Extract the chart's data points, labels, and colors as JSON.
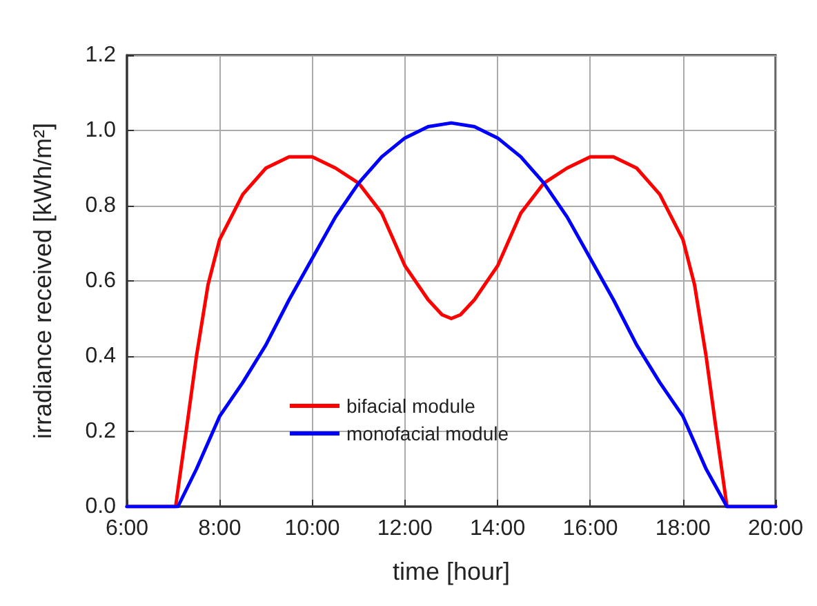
{
  "chart_data": {
    "type": "line",
    "xlabel": "time [hour]",
    "ylabel": "irradiance received [kWh/m²]",
    "xlim": [
      6,
      20
    ],
    "ylim": [
      0,
      1.2
    ],
    "xticks": [
      {
        "value": 6,
        "label": "6:00"
      },
      {
        "value": 8,
        "label": "8:00"
      },
      {
        "value": 10,
        "label": "10:00"
      },
      {
        "value": 12,
        "label": "12:00"
      },
      {
        "value": 14,
        "label": "14:00"
      },
      {
        "value": 16,
        "label": "16:00"
      },
      {
        "value": 18,
        "label": "18:00"
      },
      {
        "value": 20,
        "label": "20:00"
      }
    ],
    "yticks": [
      {
        "value": 0,
        "label": "0.0"
      },
      {
        "value": 0.2,
        "label": "0.2"
      },
      {
        "value": 0.4,
        "label": "0.4"
      },
      {
        "value": 0.6,
        "label": "0.6"
      },
      {
        "value": 0.8,
        "label": "0.8"
      },
      {
        "value": 1.0,
        "label": "1.0"
      },
      {
        "value": 1.2,
        "label": "1.2"
      }
    ],
    "grid": true,
    "legend": "bottom",
    "marker": "none",
    "line_style": "solid",
    "series": [
      {
        "name": "bifacial module",
        "color": "#ff0000",
        "x": [
          6,
          7.05,
          7.3,
          7.5,
          7.75,
          8,
          8.5,
          9,
          9.5,
          9.8,
          10,
          10.5,
          11,
          11.5,
          12,
          12.5,
          12.8,
          13,
          13.2,
          13.5,
          14,
          14.5,
          15,
          15.5,
          16,
          16.2,
          16.5,
          17,
          17.5,
          18,
          18.25,
          18.5,
          18.7,
          18.95,
          20
        ],
        "values": [
          0,
          0,
          0.22,
          0.4,
          0.59,
          0.71,
          0.83,
          0.9,
          0.93,
          0.93,
          0.93,
          0.9,
          0.86,
          0.78,
          0.64,
          0.55,
          0.51,
          0.5,
          0.51,
          0.55,
          0.64,
          0.78,
          0.86,
          0.9,
          0.93,
          0.93,
          0.93,
          0.9,
          0.83,
          0.71,
          0.59,
          0.4,
          0.22,
          0,
          0
        ]
      },
      {
        "name": "monofacial module",
        "color": "#0000ff",
        "x": [
          6,
          7.1,
          7.5,
          8,
          8.5,
          9,
          9.5,
          10,
          10.5,
          11,
          11.5,
          12,
          12.5,
          13,
          13.5,
          14,
          14.5,
          15,
          15.5,
          16,
          16.5,
          17,
          17.5,
          18,
          18.5,
          18.95,
          20
        ],
        "values": [
          0,
          0,
          0.1,
          0.24,
          0.33,
          0.43,
          0.55,
          0.66,
          0.77,
          0.86,
          0.93,
          0.98,
          1.01,
          1.02,
          1.01,
          0.98,
          0.93,
          0.86,
          0.77,
          0.66,
          0.55,
          0.43,
          0.33,
          0.24,
          0.1,
          0,
          0
        ]
      }
    ]
  }
}
